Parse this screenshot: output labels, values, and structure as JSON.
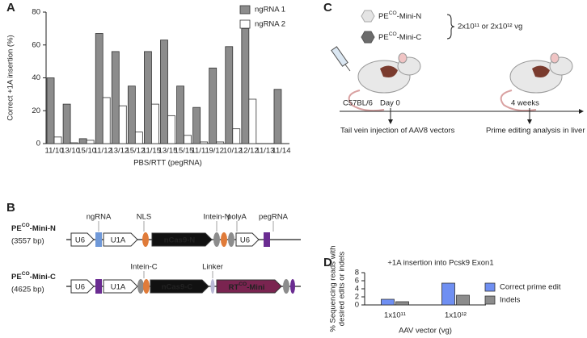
{
  "panel_letters": [
    "A",
    "B",
    "C",
    "D"
  ],
  "chart_data": [
    {
      "type": "bar",
      "ylabel": "Correct +1A insertion (%)",
      "xlabel": "PBS/RTT (pegRNA)",
      "categories": [
        "11/10",
        "13/10",
        "15/10",
        "11/12",
        "13/12",
        "15/12",
        "11/15",
        "13/15",
        "15/15",
        "11/11",
        "9/12",
        "10/12",
        "12/12",
        "11/13",
        "11/14"
      ],
      "series": [
        {
          "name": "ngRNA 1",
          "color": "#8c8c8c",
          "values": [
            40,
            24,
            3,
            67,
            56,
            35,
            56,
            63,
            35,
            22,
            46,
            59,
            70,
            0,
            33
          ]
        },
        {
          "name": "ngRNA 2",
          "color": "#ffffff",
          "values": [
            4,
            0.5,
            2,
            28,
            23,
            7,
            24,
            17,
            5,
            1,
            1,
            9,
            27,
            0,
            0
          ]
        }
      ],
      "ylim": [
        0,
        80
      ],
      "yticks": [
        0,
        20,
        40,
        60,
        80
      ],
      "legend": "upper right"
    },
    {
      "type": "bar",
      "title": "+1A insertion into Pcsk9 Exon1",
      "ylabel": [
        "% Sequencing reads with",
        "desired edits or indels"
      ],
      "xlabel": "AAV vector (vg)",
      "categories": [
        "1x10¹¹",
        "1x10¹²"
      ],
      "series": [
        {
          "name": "Correct prime edit",
          "color": "#6f8ff2",
          "values": [
            1.4,
            5.4
          ]
        },
        {
          "name": "Indels",
          "color": "#8c8c8c",
          "values": [
            0.8,
            2.4
          ]
        }
      ],
      "ylim": [
        0,
        8
      ],
      "yticks": [
        0,
        2,
        4,
        6,
        8
      ],
      "legend": "right"
    }
  ],
  "constructs": [
    {
      "name": {
        "base": "PE",
        "sup": "CO",
        "rest": "-Mini-N"
      },
      "size": "(3557 bp)",
      "blocks": [
        "U6",
        "U1A",
        "nCas9-N",
        "U6"
      ],
      "annotations": [
        "ngRNA",
        "NLS",
        "Intein-N",
        "polyA",
        "pegRNA"
      ]
    },
    {
      "name": {
        "base": "PE",
        "sup": "CO",
        "rest": "-Mini-C"
      },
      "size": "(4625 bp)",
      "blocks": [
        "U6",
        "U1A",
        "nCas9-C",
        {
          "base": "RT",
          "sup": "CO",
          "rest": "-Mini"
        }
      ],
      "annotations": [
        "Intein-C",
        "Linker"
      ]
    }
  ],
  "workflow": {
    "vectors": [
      {
        "base": "PE",
        "sup": "CO",
        "rest": "-Mini-N"
      },
      {
        "base": "PE",
        "sup": "CO",
        "rest": "-Mini-C"
      }
    ],
    "dose": "2x10¹¹ or 2x10¹² vg",
    "strain": "C57BL/6",
    "timepoints": [
      "Day 0",
      "4 weeks"
    ],
    "steps": [
      "Tail vein injection of AAV8 vectors",
      "Prime editing analysis in liver"
    ]
  }
}
